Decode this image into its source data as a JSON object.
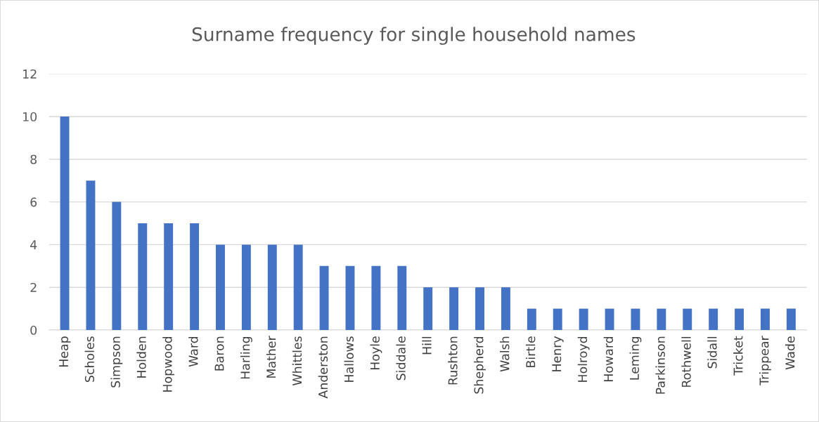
{
  "chart_data": {
    "type": "bar",
    "title": "Surname frequency for single household names",
    "categories": [
      "Heap",
      "Scholes",
      "Simpson",
      "Holden",
      "Hopwood",
      "Ward",
      "Baron",
      "Harling",
      "Mather",
      "Whittles",
      "Anderston",
      "Hallows",
      "Hoyle",
      "Siddale",
      "Hill",
      "Rushton",
      "Shepherd",
      "Walsh",
      "Birtle",
      "Henry",
      "Holroyd",
      "Howard",
      "Leming",
      "Parkinson",
      "Rothwell",
      "Sidall",
      "Tricket",
      "Trippear",
      "Wade"
    ],
    "values": [
      10,
      7,
      6,
      5,
      5,
      5,
      4,
      4,
      4,
      4,
      3,
      3,
      3,
      3,
      2,
      2,
      2,
      2,
      1,
      1,
      1,
      1,
      1,
      1,
      1,
      1,
      1,
      1,
      1
    ],
    "color": "#4472c4",
    "ylim": [
      0,
      12
    ],
    "yticks": [
      0,
      2,
      4,
      6,
      8,
      10,
      12
    ],
    "grid": "y"
  }
}
